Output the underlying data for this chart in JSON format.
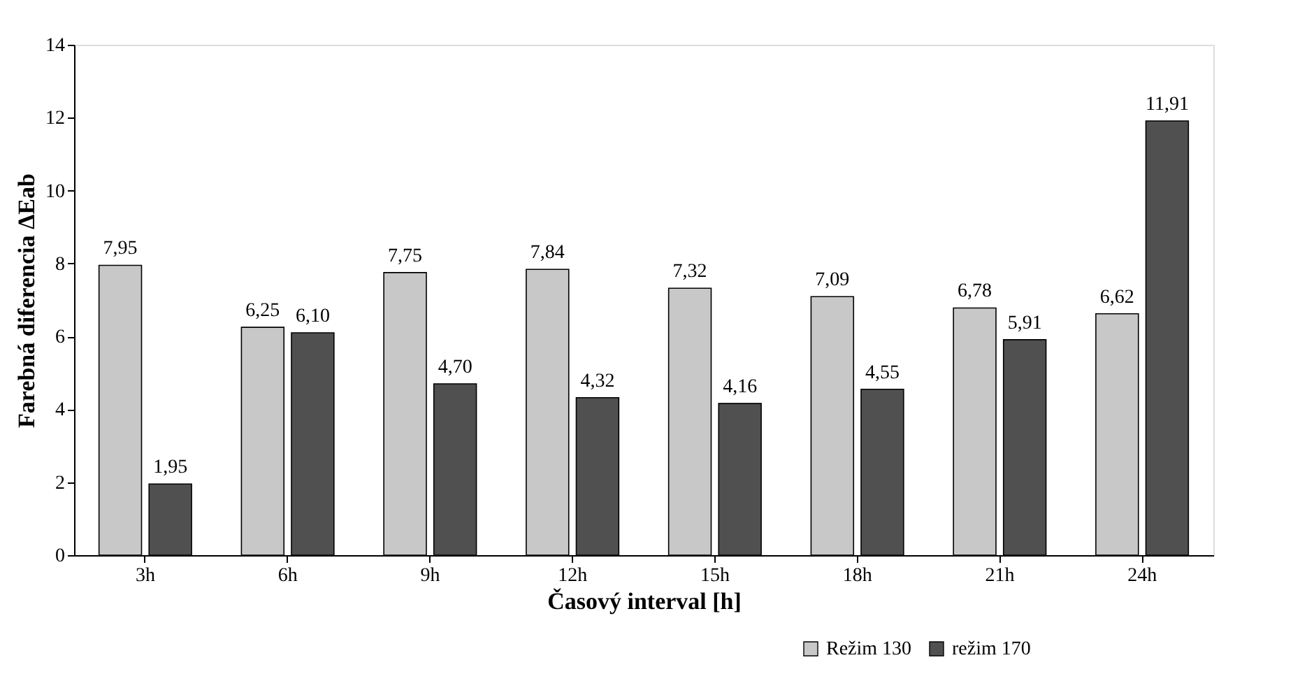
{
  "chart_data": {
    "type": "bar",
    "xlabel": "Časový interval [h]",
    "ylabel": "Farebná diferencia ΔEab",
    "categories": [
      "3h",
      "6h",
      "9h",
      "12h",
      "15h",
      "18h",
      "21h",
      "24h"
    ],
    "series": [
      {
        "name": "Režim 130",
        "color": "#c8c8c8",
        "values": [
          7.95,
          6.25,
          7.75,
          7.84,
          7.32,
          7.09,
          6.78,
          6.62
        ],
        "value_labels": [
          "7,95",
          "6,25",
          "7,75",
          "7,84",
          "7,32",
          "7,09",
          "6,78",
          "6,62"
        ]
      },
      {
        "name": "režim 170",
        "color": "#505050",
        "values": [
          1.95,
          6.1,
          4.7,
          4.32,
          4.16,
          4.55,
          5.91,
          11.91
        ],
        "value_labels": [
          "1,95",
          "6,10",
          "4,70",
          "4,32",
          "4,16",
          "4,55",
          "5,91",
          "11,91"
        ]
      }
    ],
    "ylim": [
      0,
      14
    ],
    "yticks": [
      0,
      2,
      4,
      6,
      8,
      10,
      12,
      14
    ],
    "grid": false,
    "legend": "bottom right"
  }
}
